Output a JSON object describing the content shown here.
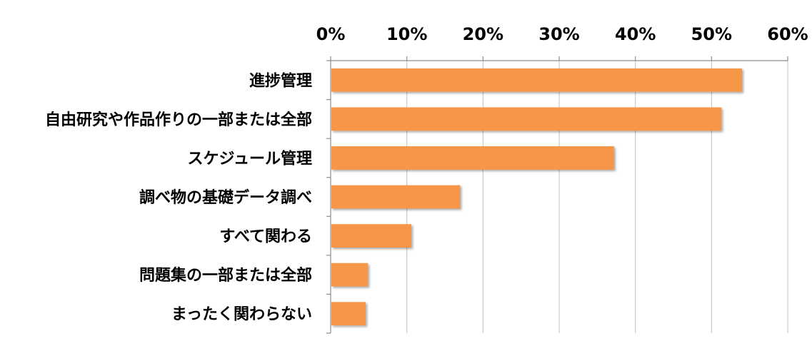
{
  "chart_data": {
    "type": "bar",
    "orientation": "horizontal",
    "categories": [
      "進捗管理",
      "自由研究や作品作りの一部または全部",
      "スケジュール管理",
      "調べ物の基礎データ調べ",
      "すべて関わる",
      "問題集の一部または全部",
      "まったく関わらない"
    ],
    "values": [
      54,
      51.3,
      37.2,
      17,
      10.6,
      4.9,
      4.6
    ],
    "xlim": [
      0,
      60
    ],
    "xticks": [
      "0%",
      "10%",
      "20%",
      "30%",
      "40%",
      "50%",
      "60%"
    ],
    "x_axis_position": "top",
    "grid": true,
    "legend": "none",
    "title": "",
    "xlabel": "",
    "ylabel": "",
    "bar_color": "#F79646"
  }
}
